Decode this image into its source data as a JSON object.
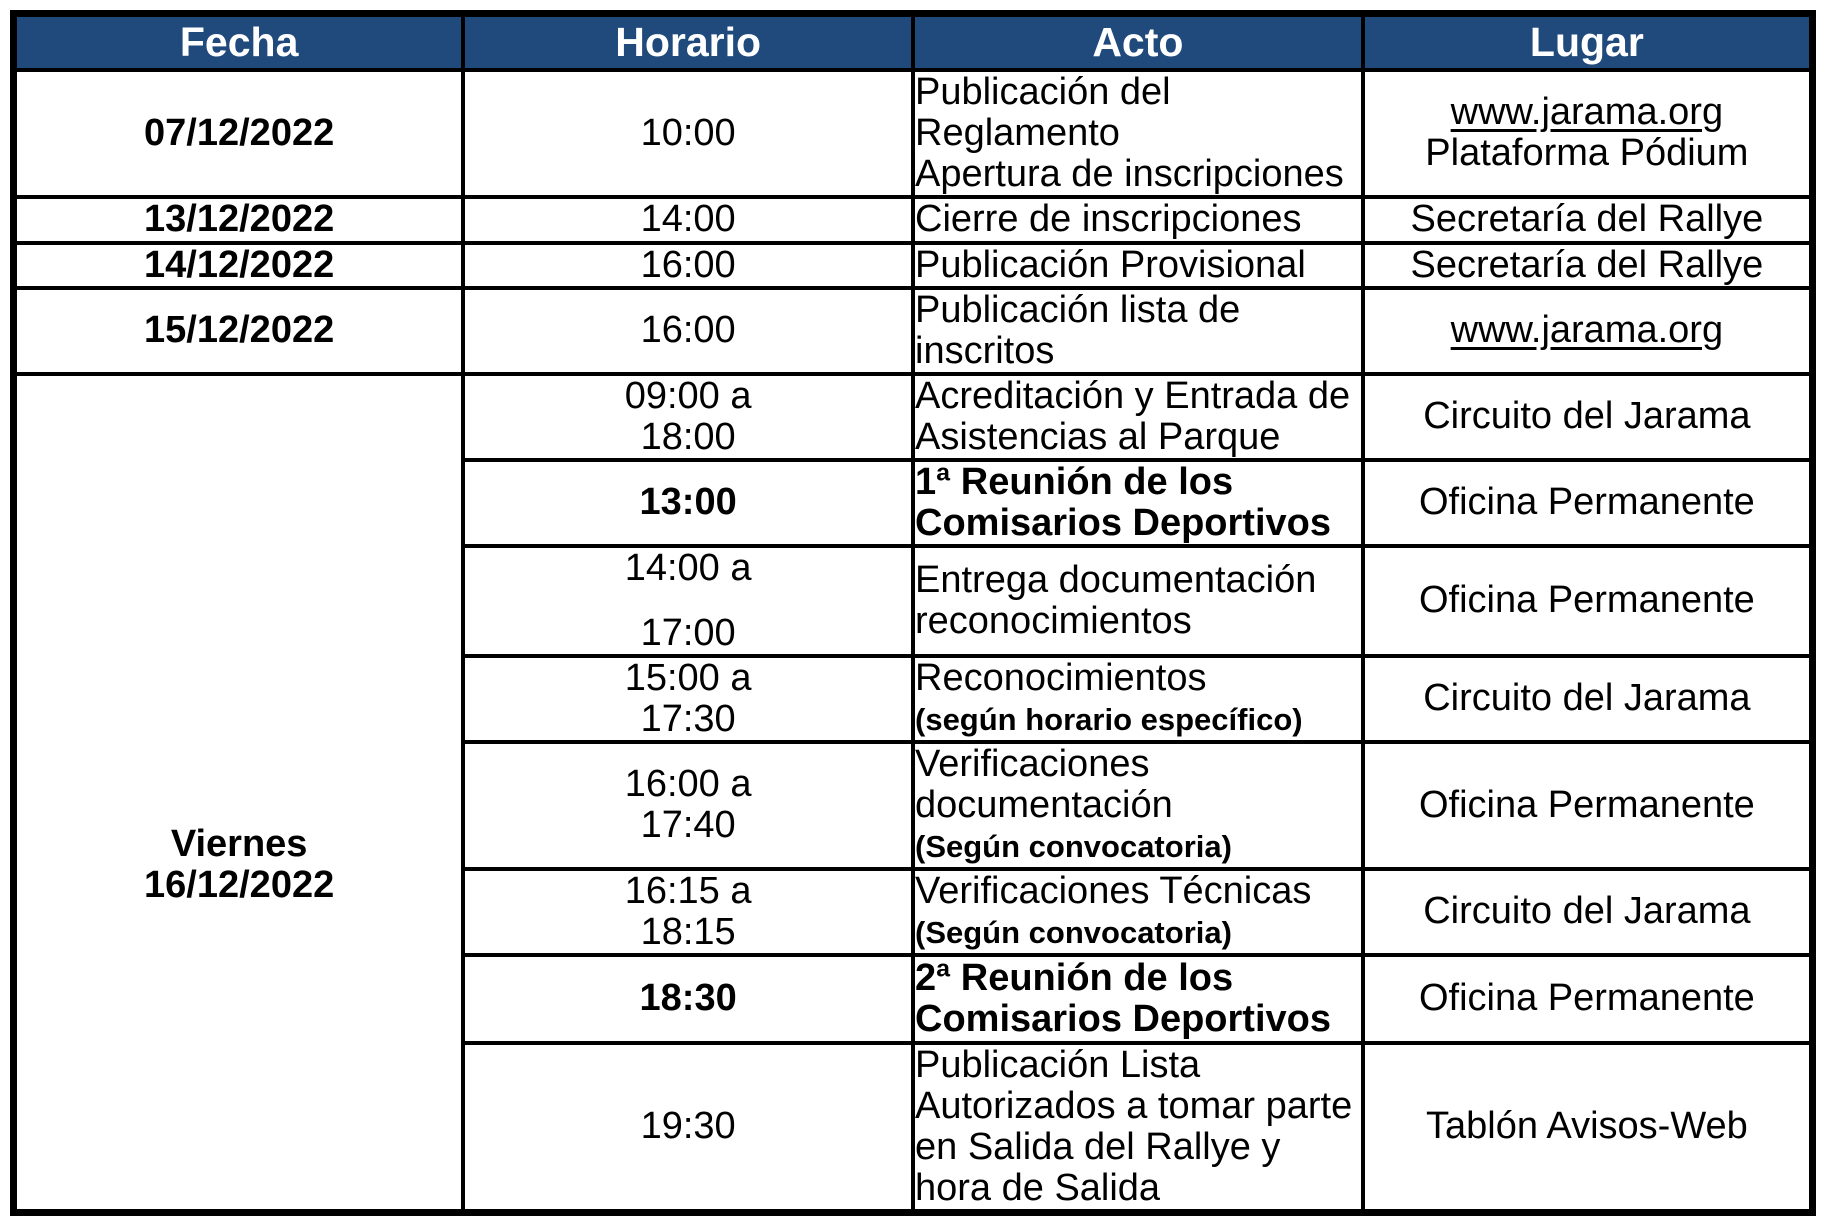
{
  "colors": {
    "header_bg": "#20497C",
    "header_text": "#FFFFFF",
    "border": "#000000",
    "body_text": "#000000"
  },
  "schedule": {
    "headers": [
      "Fecha",
      "Horario",
      "Acto",
      "Lugar"
    ],
    "rows": [
      {
        "fecha": {
          "lines": [
            "07/12/2022"
          ],
          "bold": true
        },
        "horario": {
          "lines": [
            "10:00"
          ],
          "bold": false
        },
        "acto": {
          "lines": [
            {
              "text": "Publicación del Reglamento"
            },
            {
              "text": "Apertura de inscripciones"
            }
          ]
        },
        "lugar": {
          "lines": [
            {
              "text": "www.jarama.org",
              "underline": true,
              "link": true
            },
            {
              "text": "Plataforma Pódium"
            }
          ]
        }
      },
      {
        "fecha": {
          "lines": [
            "13/12/2022"
          ],
          "bold": true
        },
        "horario": {
          "lines": [
            "14:00"
          ],
          "bold": false
        },
        "acto": {
          "lines": [
            {
              "text": "Cierre de inscripciones"
            }
          ]
        },
        "lugar": {
          "lines": [
            {
              "text": "Secretaría del Rallye"
            }
          ]
        }
      },
      {
        "fecha": {
          "lines": [
            "14/12/2022"
          ],
          "bold": true
        },
        "horario": {
          "lines": [
            "16:00"
          ],
          "bold": false
        },
        "acto": {
          "lines": [
            {
              "text": "Publicación Provisional"
            }
          ]
        },
        "lugar": {
          "lines": [
            {
              "text": "Secretaría del Rallye"
            }
          ]
        }
      },
      {
        "fecha": {
          "lines": [
            "15/12/2022"
          ],
          "bold": true
        },
        "horario": {
          "lines": [
            "16:00"
          ],
          "bold": false
        },
        "acto": {
          "lines": [
            {
              "text": "Publicación lista de inscritos"
            }
          ]
        },
        "lugar": {
          "lines": [
            {
              "text": "www.jarama.org",
              "underline": true,
              "link": true
            }
          ]
        }
      }
    ],
    "group": {
      "fecha": {
        "lines": [
          "Viernes",
          "16/12/2022"
        ],
        "bold": true
      },
      "rows": [
        {
          "horario": {
            "lines": [
              "09:00 a",
              "18:00"
            ],
            "bold": false
          },
          "acto": {
            "lines": [
              {
                "text": "Acreditación y Entrada de Asistencias al Parque"
              }
            ]
          },
          "lugar": {
            "lines": [
              {
                "text": "Circuito del Jarama"
              }
            ]
          }
        },
        {
          "horario": {
            "lines": [
              "13:00"
            ],
            "bold": true
          },
          "acto": {
            "lines": [
              {
                "text": "1ª Reunión de los Comisarios Deportivos",
                "bold": true
              }
            ]
          },
          "lugar": {
            "lines": [
              {
                "text": "Oficina Permanente"
              }
            ]
          }
        },
        {
          "horario": {
            "lines": [
              "14:00 a",
              "17:00"
            ],
            "bold": false,
            "spread": true
          },
          "acto": {
            "lines": [
              {
                "text": "Entrega documentación reconocimientos"
              }
            ]
          },
          "lugar": {
            "lines": [
              {
                "text": "Oficina Permanente"
              }
            ]
          }
        },
        {
          "horario": {
            "lines": [
              "15:00 a",
              "17:30"
            ],
            "bold": false
          },
          "acto": {
            "lines": [
              {
                "text": "Reconocimientos"
              },
              {
                "text": "(según horario específico)",
                "bold": true,
                "small": true
              }
            ]
          },
          "lugar": {
            "lines": [
              {
                "text": "Circuito del Jarama"
              }
            ]
          }
        },
        {
          "horario": {
            "lines": [
              "16:00 a",
              "17:40"
            ],
            "bold": false
          },
          "acto": {
            "lines": [
              {
                "text": "Verificaciones documentación"
              },
              {
                "text": "(Según convocatoria)",
                "bold": true,
                "small": true
              }
            ]
          },
          "lugar": {
            "lines": [
              {
                "text": "Oficina Permanente"
              }
            ]
          }
        },
        {
          "horario": {
            "lines": [
              "16:15 a",
              "18:15"
            ],
            "bold": false
          },
          "acto": {
            "lines": [
              {
                "text": "Verificaciones Técnicas"
              },
              {
                "text": "(Según convocatoria)",
                "bold": true,
                "small": true
              }
            ]
          },
          "lugar": {
            "lines": [
              {
                "text": "Circuito del Jarama"
              }
            ]
          }
        },
        {
          "horario": {
            "lines": [
              "18:30"
            ],
            "bold": true
          },
          "acto": {
            "lines": [
              {
                "text": "2ª Reunión de los Comisarios Deportivos",
                "bold": true
              }
            ]
          },
          "lugar": {
            "lines": [
              {
                "text": "Oficina Permanente"
              }
            ]
          }
        },
        {
          "horario": {
            "lines": [
              "19:30"
            ],
            "bold": false
          },
          "acto": {
            "lines": [
              {
                "text": "Publicación Lista Autorizados a tomar parte"
              },
              {
                "text": "en Salida del Rallye y hora de Salida"
              }
            ]
          },
          "lugar": {
            "lines": [
              {
                "text": "Tablón Avisos-Web"
              }
            ]
          }
        }
      ]
    }
  }
}
